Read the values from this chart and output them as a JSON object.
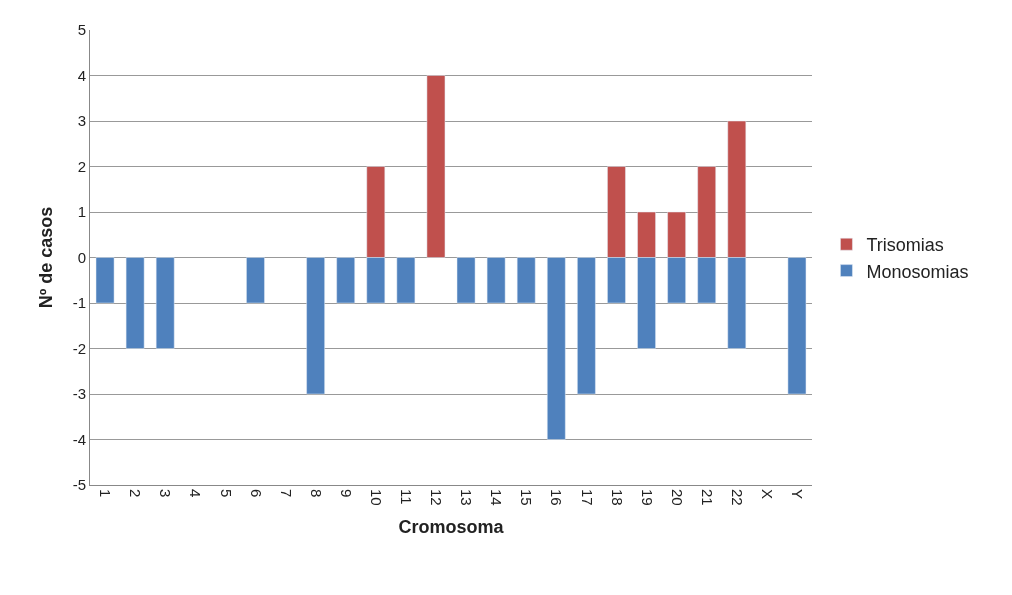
{
  "chart_data": {
    "type": "bar",
    "stacked": true,
    "xlabel": "Cromosoma",
    "ylabel": "Nº de casos",
    "categories": [
      "1",
      "2",
      "3",
      "4",
      "5",
      "6",
      "7",
      "8",
      "9",
      "10",
      "11",
      "12",
      "13",
      "14",
      "15",
      "16",
      "17",
      "18",
      "19",
      "20",
      "21",
      "22",
      "X",
      "Y"
    ],
    "series": [
      {
        "name": "Trisomias",
        "color": "#c0504d",
        "values": [
          null,
          null,
          null,
          null,
          null,
          null,
          null,
          null,
          null,
          2,
          null,
          4,
          null,
          null,
          null,
          null,
          null,
          2,
          1,
          1,
          2,
          3,
          null,
          null
        ]
      },
      {
        "name": "Monosomias",
        "color": "#4f81bd",
        "values": [
          -1,
          -2,
          -2,
          null,
          null,
          -1,
          null,
          -3,
          -1,
          -1,
          -1,
          null,
          -1,
          -1,
          -1,
          -4,
          -3,
          -1,
          -2,
          -1,
          -1,
          -2,
          null,
          -3
        ]
      }
    ],
    "ylim": [
      -5,
      5
    ],
    "yticks": [
      -5,
      -4,
      -3,
      -2,
      -1,
      0,
      1,
      2,
      3,
      4,
      5
    ],
    "grid": "y",
    "legend": "right"
  }
}
